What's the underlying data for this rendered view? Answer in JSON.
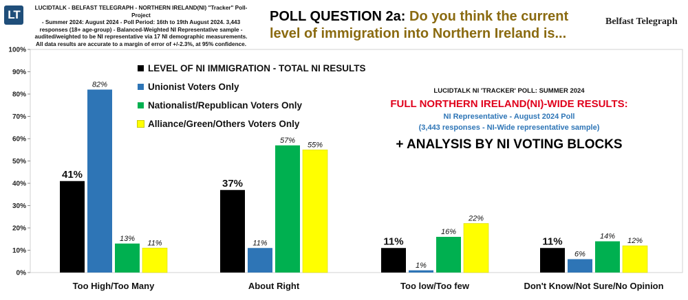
{
  "header": {
    "logo_text": "LT",
    "note_lines": [
      "LUCIDTALK - BELFAST TELEGRAPH - NORTHERN IRELAND(NI) \"Tracker\" Poll-Project",
      "- Summer 2024: August 2024 - Poll Period: 16th to 19th August 2024. 3,443",
      "responses (18+ age-group) - Balanced-Weighted NI Representative sample -",
      "audited/weighted to be NI representative via 17 NI demographic measurements.",
      "All data results are accurate to a margin of error of +/-2.3%, at 95% confidence."
    ],
    "question_label": "POLL QUESTION 2a:",
    "question_line1": "Do you think the current",
    "question_line2": "level of immigration into Northern Ireland is...",
    "brand": "Belfast Telegraph"
  },
  "info": {
    "line1": "LUCIDTALK NI 'TRACKER' POLL: SUMMER 2024",
    "line2": "FULL NORTHERN IRELAND(NI)-WIDE RESULTS:",
    "line3": "NI Representative - August 2024 Poll",
    "line4": "(3,443 responses - NI-Wide representative sample)",
    "line5": "+ ANALYSIS BY NI VOTING BLOCKS"
  },
  "chart_data": {
    "type": "bar",
    "categories": [
      "Too High/Too Many",
      "About Right",
      "Too low/Too few",
      "Don't Know/Not Sure/No Opinion"
    ],
    "series": [
      {
        "name": "LEVEL OF NI IMMIGRATION - TOTAL NI RESULTS",
        "color": "#000000",
        "values": [
          41,
          37,
          11,
          11
        ]
      },
      {
        "name": "Unionist Voters Only",
        "color": "#2e75b6",
        "values": [
          82,
          11,
          1,
          6
        ]
      },
      {
        "name": "Nationalist/Republican Voters Only",
        "color": "#00b050",
        "values": [
          13,
          57,
          16,
          14
        ]
      },
      {
        "name": "Alliance/Green/Others Voters Only",
        "color": "#ffff00",
        "values": [
          11,
          55,
          22,
          12
        ]
      }
    ],
    "ylim": [
      0,
      100
    ],
    "yticks": [
      "0%",
      "10%",
      "20%",
      "30%",
      "40%",
      "50%",
      "60%",
      "70%",
      "80%",
      "90%",
      "100%"
    ],
    "grid": false,
    "legend_position": "top-left"
  }
}
